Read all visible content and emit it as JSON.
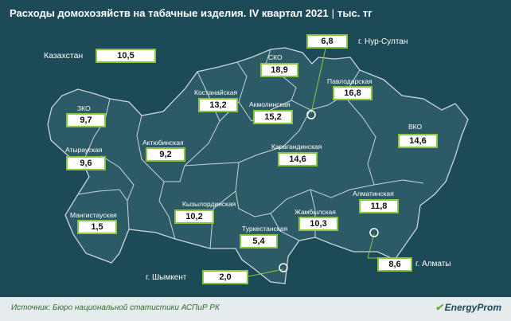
{
  "title": "Расходы домохозяйств на табачные изделия. IV квартал 2021",
  "separator": "|",
  "unit": "тыс. тг",
  "country": {
    "label": "Казахстан",
    "value": "10,5"
  },
  "regions": {
    "zko": {
      "label": "ЗКО",
      "value": "9,7"
    },
    "atyrau": {
      "label": "Атырауская",
      "value": "9,6"
    },
    "mangistau": {
      "label": "Мангистауская",
      "value": "1,5"
    },
    "aktobe": {
      "label": "Актюбинская",
      "value": "9,2"
    },
    "kostanay": {
      "label": "Костанайская",
      "value": "13,2"
    },
    "sko": {
      "label": "СКО",
      "value": "18,9"
    },
    "akmola": {
      "label": "Акмолинская",
      "value": "15,2"
    },
    "pavlodar": {
      "label": "Павлодарская",
      "value": "16,8"
    },
    "karaganda": {
      "label": "Карагандинская",
      "value": "14,6"
    },
    "vko": {
      "label": "ВКО",
      "value": "14,6"
    },
    "kyzylorda": {
      "label": "Кызылординская",
      "value": "10,2"
    },
    "zhambyl": {
      "label": "Жамбылская",
      "value": "10,3"
    },
    "turkestan": {
      "label": "Туркестанская",
      "value": "5,4"
    },
    "almaty_obl": {
      "label": "Алматинская",
      "value": "11,8"
    }
  },
  "cities": {
    "nur_sultan": {
      "label": "г. Нур-Султан",
      "value": "6,8"
    },
    "almaty": {
      "label": "г. Алматы",
      "value": "8,6"
    },
    "shymkent": {
      "label": "г. Шымкент",
      "value": "2,0"
    }
  },
  "colors": {
    "background": "#1d4a57",
    "land": "#2c5a66",
    "border": "#c9d6da",
    "box_border": "#8cc63f",
    "leader": "#8cc63f"
  },
  "footer": {
    "source": "Источник: Бюро национальной статистики АСПиР РК",
    "brand": "EnergyProm",
    "brand_icon": "energyprom-logo-icon"
  }
}
